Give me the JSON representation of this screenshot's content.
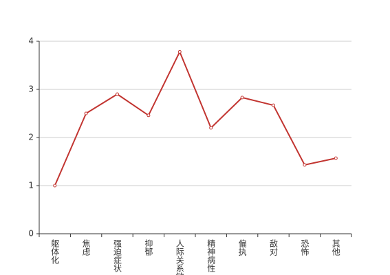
{
  "chart_data": {
    "type": "line",
    "categories": [
      "躯体化",
      "焦虑",
      "强迫症状",
      "抑郁",
      "人际关系敏感",
      "精神病性",
      "偏执",
      "敌对",
      "恐怖",
      "其他"
    ],
    "values": [
      1.0,
      2.5,
      2.9,
      2.46,
      3.78,
      2.2,
      2.83,
      2.67,
      1.43,
      1.57
    ],
    "color": "#c23531",
    "ylim": [
      0,
      4
    ],
    "yticks": [
      0,
      1,
      2,
      3,
      4
    ],
    "grid": true
  }
}
